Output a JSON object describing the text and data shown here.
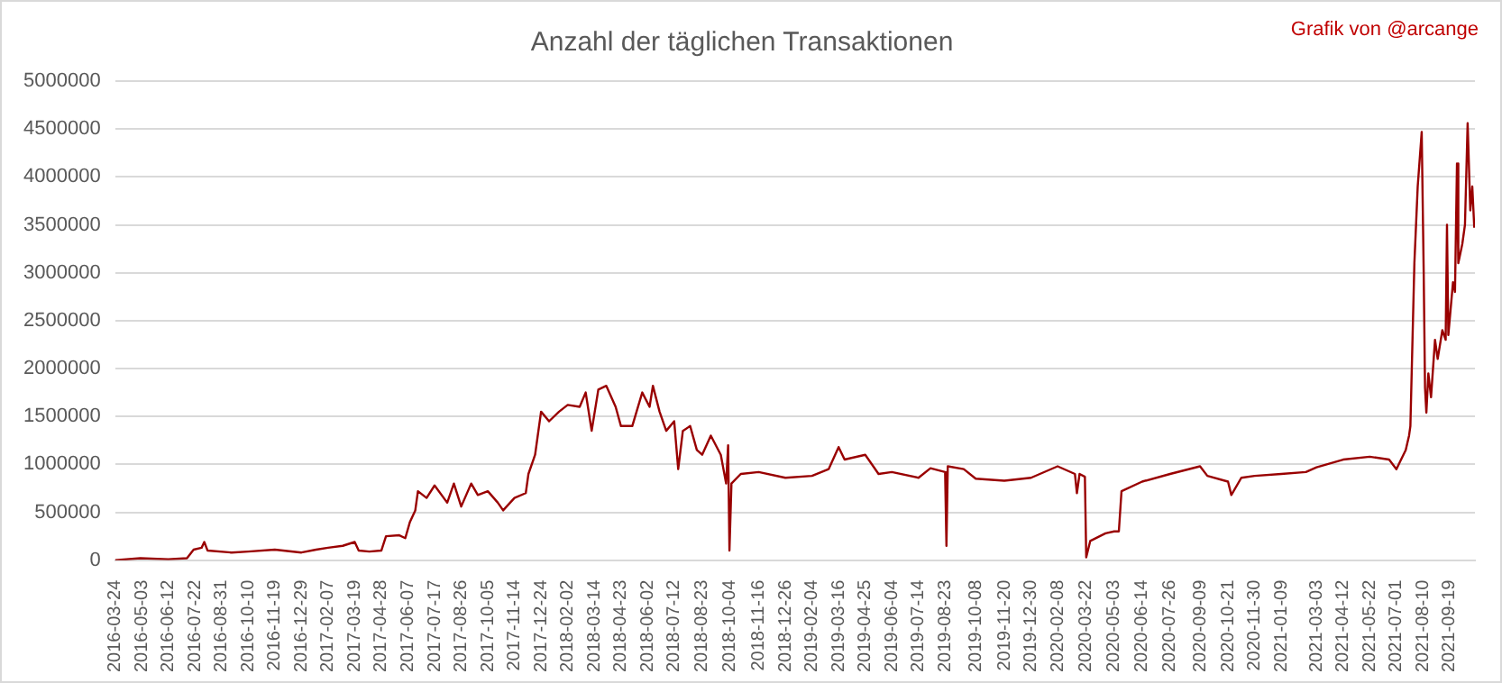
{
  "chart_data": {
    "type": "line",
    "title": "Anzahl der täglichen Transaktionen",
    "annotations": [
      "Grafik von @arcange"
    ],
    "x": [
      "2016-03-24",
      "2016-05-01",
      "2016-06-12",
      "2016-07-10",
      "2016-07-20",
      "2016-08-01",
      "2016-08-05",
      "2016-08-10",
      "2016-09-15",
      "2016-10-10",
      "2016-11-19",
      "2016-12-29",
      "2017-01-20",
      "2017-02-07",
      "2017-03-01",
      "2017-03-19",
      "2017-03-25",
      "2017-04-10",
      "2017-04-28",
      "2017-05-05",
      "2017-05-25",
      "2017-06-03",
      "2017-06-10",
      "2017-06-18",
      "2017-06-22",
      "2017-07-05",
      "2017-07-17",
      "2017-08-05",
      "2017-08-15",
      "2017-08-26",
      "2017-09-10",
      "2017-09-20",
      "2017-10-05",
      "2017-10-20",
      "2017-10-28",
      "2017-11-14",
      "2017-12-01",
      "2017-12-05",
      "2017-12-15",
      "2017-12-24",
      "2018-01-05",
      "2018-01-20",
      "2018-02-02",
      "2018-02-20",
      "2018-03-01",
      "2018-03-10",
      "2018-03-20",
      "2018-04-01",
      "2018-04-15",
      "2018-04-23",
      "2018-05-10",
      "2018-05-25",
      "2018-06-05",
      "2018-06-10",
      "2018-06-20",
      "2018-06-30",
      "2018-07-12",
      "2018-07-18",
      "2018-07-25",
      "2018-08-05",
      "2018-08-15",
      "2018-08-23",
      "2018-09-05",
      "2018-09-20",
      "2018-09-28",
      "2018-10-01",
      "2018-10-03",
      "2018-10-06",
      "2018-10-20",
      "2018-11-16",
      "2018-12-26",
      "2019-02-04",
      "2019-03-01",
      "2019-03-16",
      "2019-03-25",
      "2019-04-25",
      "2019-05-15",
      "2019-06-04",
      "2019-07-14",
      "2019-08-01",
      "2019-08-23",
      "2019-08-25",
      "2019-08-27",
      "2019-09-20",
      "2019-10-08",
      "2019-11-20",
      "2019-12-30",
      "2020-02-08",
      "2020-03-05",
      "2020-03-08",
      "2020-03-12",
      "2020-03-20",
      "2020-03-22",
      "2020-03-28",
      "2020-04-20",
      "2020-05-03",
      "2020-05-10",
      "2020-05-14",
      "2020-06-14",
      "2020-07-26",
      "2020-09-09",
      "2020-09-20",
      "2020-10-21",
      "2020-10-26",
      "2020-11-10",
      "2020-11-30",
      "2021-01-09",
      "2021-02-15",
      "2021-03-03",
      "2021-04-12",
      "2021-05-22",
      "2021-06-20",
      "2021-07-01",
      "2021-07-15",
      "2021-07-20",
      "2021-07-22",
      "2021-07-28",
      "2021-08-02",
      "2021-08-08",
      "2021-08-11",
      "2021-08-13",
      "2021-08-15",
      "2021-08-18",
      "2021-08-22",
      "2021-08-28",
      "2021-09-01",
      "2021-09-08",
      "2021-09-13",
      "2021-09-15",
      "2021-09-17",
      "2021-09-24",
      "2021-09-27",
      "2021-09-30",
      "2021-10-02",
      "2021-10-08",
      "2021-10-12",
      "2021-10-16",
      "2021-10-20",
      "2021-10-23",
      "2021-10-26"
    ],
    "series": [
      {
        "color": "#990000",
        "values": [
          0,
          20000,
          10000,
          20000,
          110000,
          130000,
          190000,
          100000,
          80000,
          90000,
          110000,
          80000,
          110000,
          130000,
          150000,
          190000,
          100000,
          90000,
          100000,
          250000,
          260000,
          230000,
          400000,
          520000,
          720000,
          650000,
          780000,
          600000,
          800000,
          560000,
          800000,
          680000,
          720000,
          600000,
          520000,
          650000,
          700000,
          900000,
          1100000,
          1550000,
          1450000,
          1550000,
          1620000,
          1600000,
          1750000,
          1350000,
          1780000,
          1820000,
          1600000,
          1400000,
          1400000,
          1750000,
          1600000,
          1820000,
          1550000,
          1350000,
          1450000,
          950000,
          1350000,
          1400000,
          1150000,
          1100000,
          1300000,
          1100000,
          800000,
          1200000,
          100000,
          800000,
          900000,
          920000,
          860000,
          880000,
          950000,
          1180000,
          1050000,
          1100000,
          900000,
          920000,
          860000,
          960000,
          920000,
          150000,
          980000,
          950000,
          850000,
          830000,
          860000,
          980000,
          900000,
          700000,
          900000,
          870000,
          30000,
          200000,
          280000,
          300000,
          300000,
          720000,
          820000,
          900000,
          980000,
          880000,
          820000,
          680000,
          860000,
          880000,
          900000,
          920000,
          970000,
          1050000,
          1080000,
          1050000,
          950000,
          1150000,
          1300000,
          1400000,
          3100000,
          3900000,
          4470000,
          3000000,
          1800000,
          1540000,
          1950000,
          1700000,
          2300000,
          2100000,
          2400000,
          2300000,
          3500000,
          2350000,
          2900000,
          2800000,
          4140000,
          3100000,
          3300000,
          3500000,
          4560000,
          3650000,
          3900000,
          3470000
        ]
      }
    ],
    "xlim": [
      "2016-03-24",
      "2021-10-27"
    ],
    "xticks": [
      "2016-03-24",
      "2016-05-03",
      "2016-06-12",
      "2016-07-22",
      "2016-08-31",
      "2016-10-10",
      "2016-11-19",
      "2016-12-29",
      "2017-02-07",
      "2017-03-19",
      "2017-04-28",
      "2017-06-07",
      "2017-07-17",
      "2017-08-26",
      "2017-10-05",
      "2017-11-14",
      "2017-12-24",
      "2018-02-02",
      "2018-03-14",
      "2018-04-23",
      "2018-06-02",
      "2018-07-12",
      "2018-08-23",
      "2018-10-04",
      "2018-11-16",
      "2018-12-26",
      "2019-02-04",
      "2019-03-16",
      "2019-04-25",
      "2019-06-04",
      "2019-07-14",
      "2019-08-23",
      "2019-10-08",
      "2019-11-20",
      "2019-12-30",
      "2020-02-08",
      "2020-03-22",
      "2020-05-03",
      "2020-06-14",
      "2020-07-26",
      "2020-09-09",
      "2020-10-21",
      "2020-11-30",
      "2021-01-09",
      "2021-03-03",
      "2021-04-12",
      "2021-05-22",
      "2021-07-01",
      "2021-08-10",
      "2021-09-19"
    ],
    "ylim": [
      0,
      5000000
    ],
    "yticks": [
      0,
      500000,
      1000000,
      1500000,
      2000000,
      2500000,
      3000000,
      3500000,
      4000000,
      4500000,
      5000000
    ],
    "grid": "y",
    "legend": false,
    "marker": "none",
    "line_style": "solid"
  }
}
